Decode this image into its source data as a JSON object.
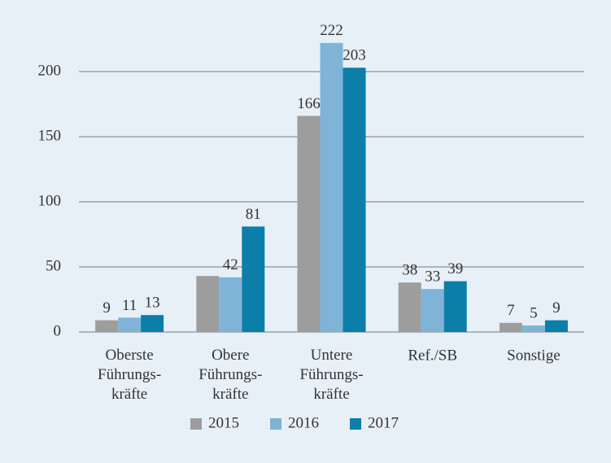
{
  "chart_data": {
    "type": "bar",
    "categories": [
      "Oberste\nFührungs-\nkräfte",
      "Obere\nFührungs-\nkräfte",
      "Untere\nFührungs-\nkräfte",
      "Ref./SB",
      "Sonstige"
    ],
    "series": [
      {
        "name": "2015",
        "color": "#9d9d9d",
        "values": [
          9,
          43,
          166,
          38,
          7
        ],
        "value_labels": [
          "9",
          null,
          "166",
          "38",
          "7"
        ]
      },
      {
        "name": "2016",
        "color": "#7fb3d8",
        "values": [
          11,
          42,
          222,
          33,
          5
        ]
      },
      {
        "name": "2017",
        "color": "#0b7ea9",
        "values": [
          13,
          81,
          203,
          39,
          9
        ]
      }
    ],
    "ylim": [
      0,
      230
    ],
    "yticks": [
      0,
      50,
      100,
      150,
      200
    ],
    "grid": true,
    "legend": "bottom"
  }
}
